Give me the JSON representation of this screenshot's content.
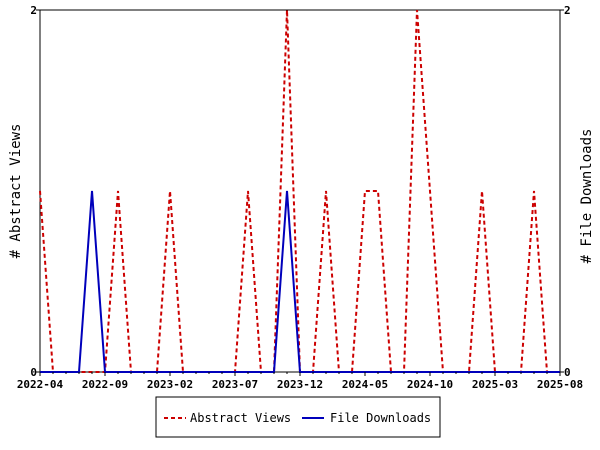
{
  "chart_data": {
    "type": "line",
    "ylabel_left": "# Abstract Views",
    "ylabel_right": "# File Downloads",
    "y_ticks_left": [
      "0",
      "2"
    ],
    "y_ticks_right": [
      "0",
      "2"
    ],
    "ylim": [
      0,
      2
    ],
    "x_tick_labels": [
      "2022-04",
      "2022-09",
      "2023-02",
      "2023-07",
      "2023-12",
      "2024-05",
      "2024-10",
      "2025-03",
      "2025-08"
    ],
    "x": [
      "2022-04",
      "2022-05",
      "2022-06",
      "2022-07",
      "2022-08",
      "2022-09",
      "2022-10",
      "2022-11",
      "2022-12",
      "2023-01",
      "2023-02",
      "2023-03",
      "2023-04",
      "2023-05",
      "2023-06",
      "2023-07",
      "2023-08",
      "2023-09",
      "2023-10",
      "2023-11",
      "2023-12",
      "2024-01",
      "2024-02",
      "2024-03",
      "2024-04",
      "2024-05",
      "2024-06",
      "2024-07",
      "2024-08",
      "2024-09",
      "2024-10",
      "2024-11",
      "2024-12",
      "2025-01",
      "2025-02",
      "2025-03",
      "2025-04",
      "2025-05",
      "2025-06",
      "2025-07",
      "2025-08"
    ],
    "series": [
      {
        "name": "Abstract Views",
        "color": "#cc0000",
        "dash": true,
        "axis": "left",
        "values": [
          1,
          0,
          0,
          0,
          0,
          0,
          1,
          0,
          0,
          0,
          1,
          0,
          0,
          0,
          0,
          0,
          1,
          0,
          0,
          2,
          0,
          0,
          1,
          0,
          0,
          1,
          1,
          0,
          0,
          2,
          1,
          0,
          0,
          0,
          1,
          0,
          0,
          0,
          1,
          0,
          0
        ]
      },
      {
        "name": "File Downloads",
        "color": "#0000bb",
        "dash": false,
        "axis": "right",
        "values": [
          0,
          0,
          0,
          0,
          1,
          0,
          0,
          0,
          0,
          0,
          0,
          0,
          0,
          0,
          0,
          0,
          0,
          0,
          0,
          1,
          0,
          0,
          0,
          0,
          0,
          0,
          0,
          0,
          0,
          0,
          0,
          0,
          0,
          0,
          0,
          0,
          0,
          0,
          0,
          0,
          0
        ]
      }
    ],
    "legend_position": "bottom-center",
    "grid": false
  }
}
